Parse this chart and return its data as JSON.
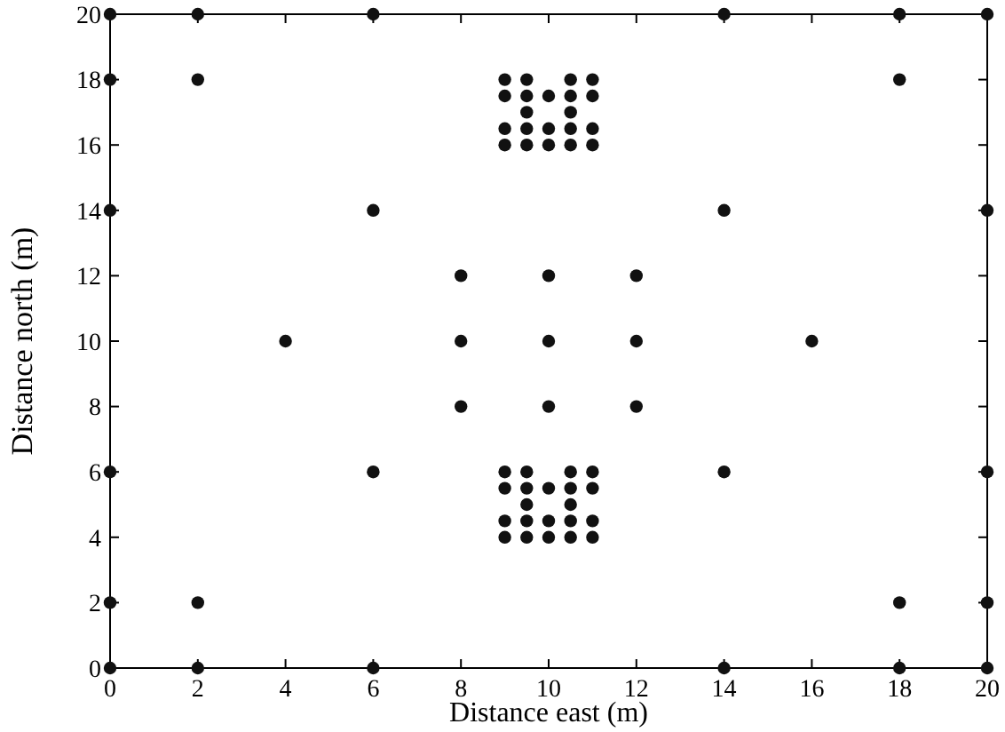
{
  "chart_data": {
    "type": "scatter",
    "xlabel": "Distance east (m)",
    "ylabel": "Distance north (m)",
    "xlim": [
      0,
      20
    ],
    "ylim": [
      0,
      20
    ],
    "xticks": [
      0,
      2,
      4,
      6,
      8,
      10,
      12,
      14,
      16,
      18,
      20
    ],
    "yticks": [
      0,
      2,
      4,
      6,
      8,
      10,
      12,
      14,
      16,
      18,
      20
    ],
    "marker": "circle",
    "grid": false,
    "series": [
      {
        "color": "#111111",
        "x": [
          0,
          0,
          0,
          0,
          0,
          0,
          2,
          2,
          2,
          2,
          6,
          6,
          6,
          6,
          14,
          14,
          14,
          14,
          18,
          18,
          18,
          18,
          20,
          20,
          20,
          20,
          20,
          4,
          8,
          8,
          8,
          10,
          10,
          10,
          12,
          12,
          12,
          16,
          9,
          9.5,
          10.5,
          11,
          9,
          9.5,
          10,
          10.5,
          11,
          9.5,
          10.5,
          9,
          9.5,
          10,
          10.5,
          11,
          9,
          9.5,
          10,
          10.5,
          11,
          9,
          9.5,
          10.5,
          11,
          9,
          9.5,
          10,
          10.5,
          11,
          9.5,
          10.5,
          9,
          9.5,
          10,
          10.5,
          11,
          9,
          9.5,
          10,
          10.5,
          11
        ],
        "values": [
          0,
          2,
          6,
          14,
          18,
          20,
          0,
          2,
          18,
          20,
          0,
          6,
          14,
          20,
          0,
          6,
          14,
          20,
          0,
          2,
          18,
          20,
          0,
          2,
          6,
          14,
          20,
          10,
          8,
          10,
          12,
          8,
          10,
          12,
          8,
          10,
          12,
          10,
          18,
          18,
          18,
          18,
          17.5,
          17.5,
          17.5,
          17.5,
          17.5,
          17,
          17,
          16.5,
          16.5,
          16.5,
          16.5,
          16.5,
          16,
          16,
          16,
          16,
          16,
          6,
          6,
          6,
          6,
          5.5,
          5.5,
          5.5,
          5.5,
          5.5,
          5,
          5,
          4.5,
          4.5,
          4.5,
          4.5,
          4.5,
          4,
          4,
          4,
          4,
          4
        ]
      }
    ]
  }
}
